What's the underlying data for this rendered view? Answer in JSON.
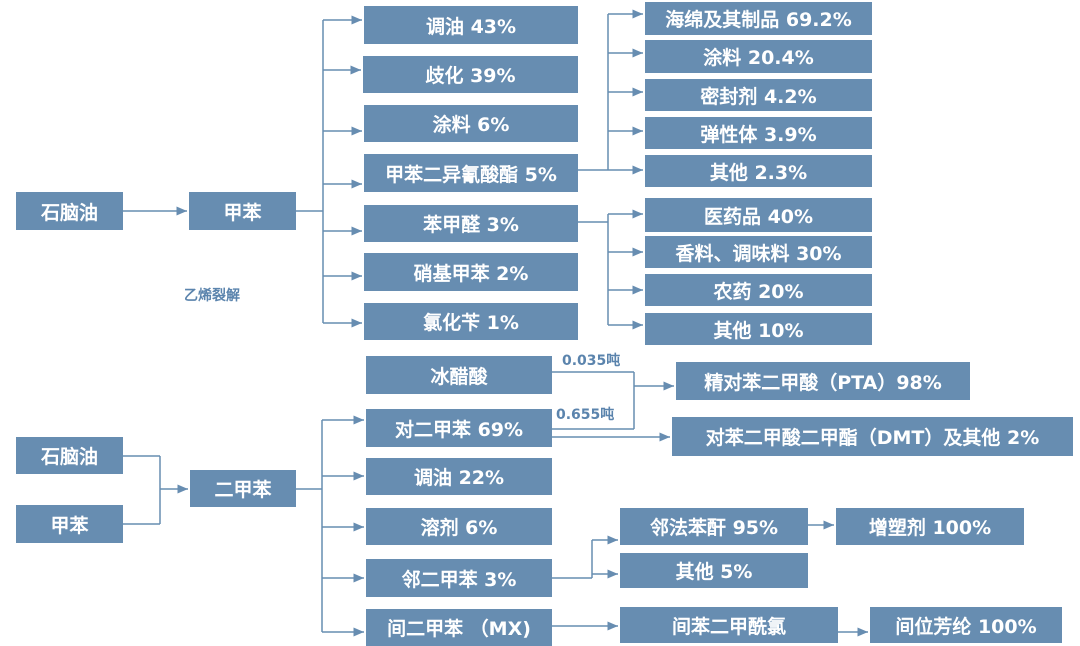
{
  "colors": {
    "box": "#678db1",
    "line": "#678db1",
    "label": "#5b84ad"
  },
  "top": {
    "source": "石脑油",
    "product": "甲苯",
    "uses": [
      "调油 43%",
      "歧化 39%",
      "涂料 6%",
      "甲苯二异氰酸酯 5%",
      "苯甲醛 3%",
      "硝基甲苯 2%",
      "氯化苄 1%"
    ],
    "tdi_uses": [
      "海绵及其制品 69.2%",
      "涂料 20.4%",
      "密封剂 4.2%",
      "弹性体 3.9%",
      "其他 2.3%"
    ],
    "benzaldehyde_uses": [
      "医药品 40%",
      "香料、调味料 30%",
      "农药 20%",
      "其他 10%"
    ],
    "note": "乙烯裂解"
  },
  "bottom": {
    "sources": [
      "石脑油",
      "甲苯"
    ],
    "product": "二甲苯",
    "acetic": "冰醋酸",
    "uses": [
      "对二甲苯 69%",
      "调油 22%",
      "溶剂 6%",
      "邻二甲苯 3%",
      "间二甲苯 （MX)"
    ],
    "px_labels": [
      "0.035吨",
      "0.655吨"
    ],
    "px_products": [
      "精对苯二甲酸（PTA）98%",
      "对苯二甲酸二甲酯（DMT）及其他 2%"
    ],
    "ox_products": [
      "邻法苯酐 95%",
      "其他 5%"
    ],
    "pa_product": "增塑剂 100%",
    "mx_products": [
      "间苯二甲酰氯",
      "间位芳纶 100%"
    ]
  }
}
